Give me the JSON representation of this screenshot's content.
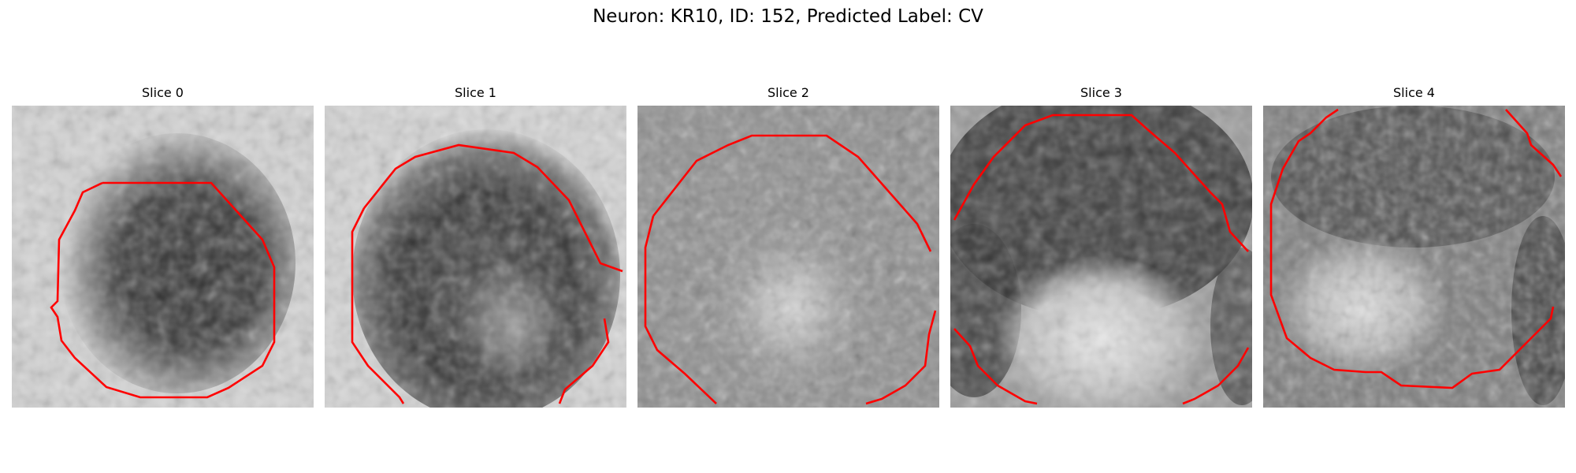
{
  "figure": {
    "title": "Neuron: KR10, ID: 152, Predicted Label: CV"
  },
  "colors": {
    "contour": "#ff0000",
    "cmap": "grayscale"
  },
  "slices": [
    {
      "title": "Slice 0"
    },
    {
      "title": "Slice 1"
    },
    {
      "title": "Slice 2"
    },
    {
      "title": "Slice 3"
    },
    {
      "title": "Slice 4"
    }
  ]
}
